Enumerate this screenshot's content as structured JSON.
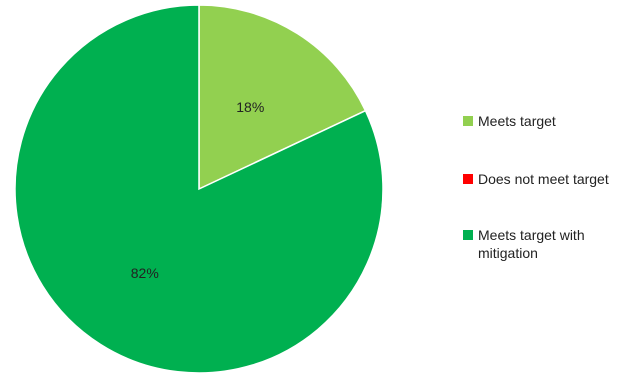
{
  "chart_data": {
    "type": "pie",
    "categories": [
      "Meets target",
      "Does not meet target",
      "Meets target with mitigation"
    ],
    "values": [
      18,
      0,
      82
    ],
    "data_labels": [
      "18%",
      "0%",
      "82%"
    ],
    "colors": [
      "#92d050",
      "#ff0000",
      "#00b050"
    ],
    "legend_position": "right"
  }
}
